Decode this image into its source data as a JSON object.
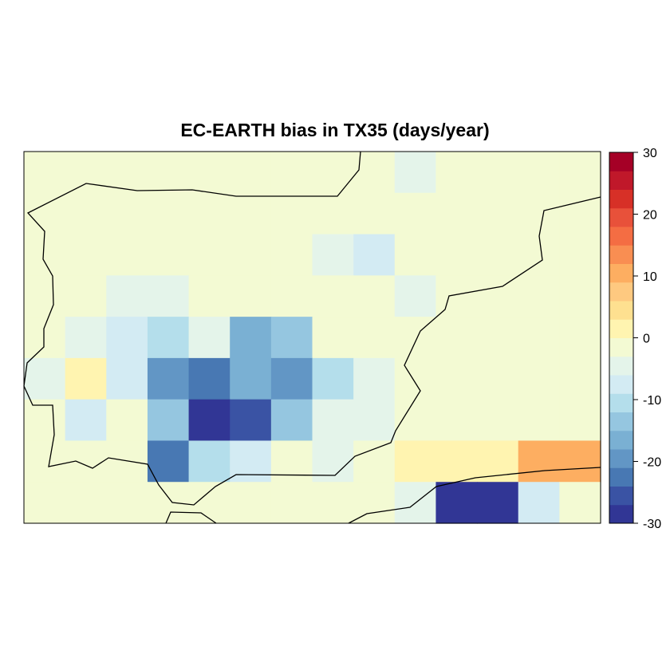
{
  "chart_data": {
    "type": "heatmap",
    "title": "EC-EARTH bias in TX35 (days/year)",
    "xlabel": "",
    "ylabel": "",
    "grid": false,
    "legend_placement": "right",
    "colorbar": {
      "range": [
        -30,
        30
      ],
      "breaks_step": 3,
      "tick_labels": [
        "30",
        "20",
        "10",
        "0",
        "-10",
        "-20",
        "-30"
      ],
      "tick_values": [
        30,
        20,
        10,
        0,
        -10,
        -20,
        -30
      ],
      "colors": [
        "#313695",
        "#3a53a4",
        "#4878b3",
        "#6296c5",
        "#7ab0d3",
        "#95c6e0",
        "#b4deeb",
        "#d3ebf3",
        "#e4f4ea",
        "#f3fad3",
        "#fff4b0",
        "#fee090",
        "#fec980",
        "#fdae61",
        "#f98e52",
        "#f46d43",
        "#e8513a",
        "#d73027",
        "#c0182a",
        "#a50026"
      ]
    },
    "n_cols": 14,
    "n_rows": 9,
    "values": [
      [
        -1.5,
        -1.5,
        -1.5,
        -1.5,
        -1.5,
        -1.5,
        -1.5,
        -1.5,
        -1.5,
        -4.5,
        -1.5,
        -1.5,
        -1.5,
        -1.5
      ],
      [
        -1.5,
        -1.5,
        -1.5,
        -1.5,
        -1.5,
        -1.5,
        -1.5,
        -1.5,
        -1.5,
        -1.5,
        -1.5,
        -1.5,
        -1.5,
        -1.5
      ],
      [
        -1.5,
        -1.5,
        -1.5,
        -1.5,
        -1.5,
        -1.5,
        -1.5,
        -4.5,
        -7.5,
        -1.5,
        -1.5,
        -1.5,
        -1.5,
        -1.5
      ],
      [
        -1.5,
        -1.5,
        -4.5,
        -4.5,
        -1.5,
        -1.5,
        -1.5,
        -1.5,
        -1.5,
        -4.5,
        -1.5,
        -1.5,
        -1.5,
        -1.5
      ],
      [
        -1.5,
        -4.5,
        -7.5,
        -10.5,
        -4.5,
        -16.5,
        -13.5,
        -1.5,
        -1.5,
        -1.5,
        -1.5,
        -1.5,
        -1.5,
        -1.5
      ],
      [
        -4.5,
        1.5,
        -7.5,
        -19.5,
        -22.5,
        -16.5,
        -19.5,
        -10.5,
        -4.5,
        -1.5,
        -1.5,
        -1.5,
        -1.5,
        -1.5
      ],
      [
        -1.5,
        -7.5,
        -1.5,
        -13.5,
        -28.5,
        -25.5,
        -13.5,
        -4.5,
        -4.5,
        -1.5,
        -1.5,
        -1.5,
        -1.5,
        -1.5
      ],
      [
        -1.5,
        -1.5,
        -1.5,
        -22.5,
        -10.5,
        -7.5,
        -1.5,
        -4.5,
        -1.5,
        1.5,
        1.5,
        1.5,
        10.5,
        10.5
      ],
      [
        -1.5,
        -1.5,
        -1.5,
        -1.5,
        -1.5,
        -1.5,
        -1.5,
        -1.5,
        -1.5,
        -4.5,
        -28.5,
        -28.5,
        -7.5,
        -1.5
      ]
    ]
  }
}
